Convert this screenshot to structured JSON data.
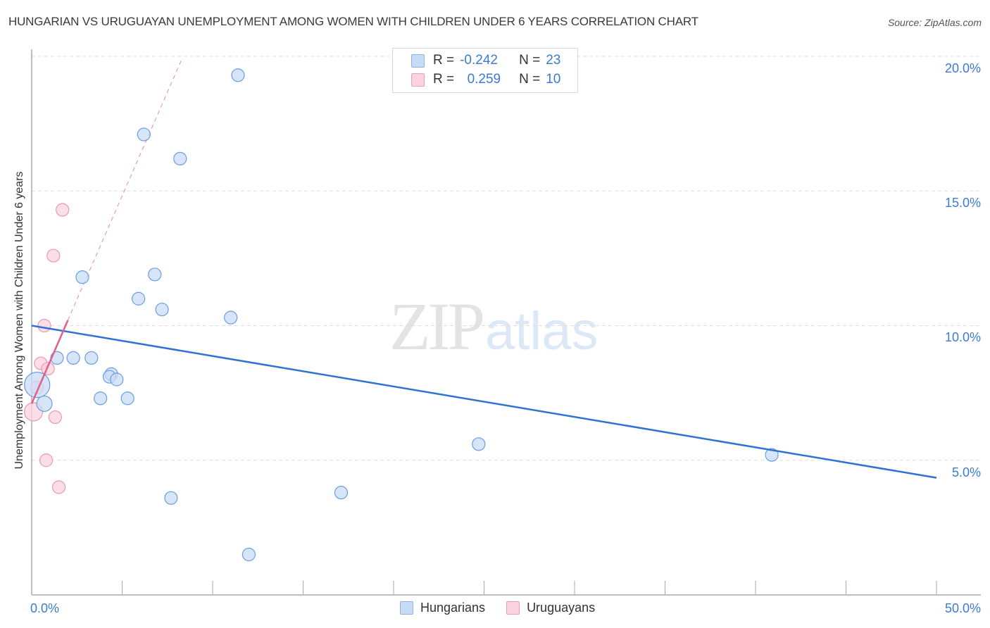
{
  "header": {
    "title": "HUNGARIAN VS URUGUAYAN UNEMPLOYMENT AMONG WOMEN WITH CHILDREN UNDER 6 YEARS CORRELATION CHART",
    "source": "Source: ZipAtlas.com"
  },
  "axes": {
    "y_label": "Unemployment Among Women with Children Under 6 years",
    "y_ticks": [
      "20.0%",
      "15.0%",
      "10.0%",
      "5.0%"
    ],
    "x_min_label": "0.0%",
    "x_max_label": "50.0%"
  },
  "legend": {
    "rows": [
      {
        "r_label": "R =",
        "r_value": "-0.242",
        "n_label": "N =",
        "n_value": "23",
        "color": "#aac8f0"
      },
      {
        "r_label": "R =",
        "r_value": "0.259",
        "n_label": "N =",
        "n_value": "10",
        "color": "#f8bccd"
      }
    ],
    "series": [
      {
        "name": "Hungarians",
        "color": "#aac8f0"
      },
      {
        "name": "Uruguayans",
        "color": "#f8bccd"
      }
    ]
  },
  "watermark": {
    "zip": "ZIP",
    "atlas": "atlas"
  },
  "colors": {
    "blue_fill": "#c9dcf5",
    "blue_stroke": "#6a9de0",
    "blue_line": "#2e72d2",
    "pink_fill": "#fbd3de",
    "pink_stroke": "#ec97b0",
    "pink_line": "#e0608a",
    "tick_label": "#3a7bd5",
    "grid": "#dddddd"
  },
  "chart_data": {
    "type": "scatter",
    "title": "HUNGARIAN VS URUGUAYAN UNEMPLOYMENT AMONG WOMEN WITH CHILDREN UNDER 6 YEARS CORRELATION CHART",
    "xlabel": "",
    "ylabel": "Unemployment Among Women with Children Under 6 years",
    "xlim": [
      0,
      50
    ],
    "ylim": [
      0,
      20.9
    ],
    "x_ticks": [
      "0.0%",
      "50.0%"
    ],
    "y_ticks": [
      "5.0%",
      "10.0%",
      "15.0%",
      "20.0%"
    ],
    "grid": true,
    "legend_position": "bottom-center",
    "series": [
      {
        "name": "Hungarians",
        "r": -0.242,
        "n": 23,
        "points": [
          {
            "x": 11.4,
            "y": 19.3,
            "size": 9
          },
          {
            "x": 6.2,
            "y": 17.1,
            "size": 9
          },
          {
            "x": 8.2,
            "y": 16.2,
            "size": 9
          },
          {
            "x": 2.8,
            "y": 11.8,
            "size": 9
          },
          {
            "x": 6.8,
            "y": 11.9,
            "size": 9
          },
          {
            "x": 5.9,
            "y": 11.0,
            "size": 9
          },
          {
            "x": 7.2,
            "y": 10.6,
            "size": 9
          },
          {
            "x": 11.0,
            "y": 10.3,
            "size": 9
          },
          {
            "x": 2.3,
            "y": 8.8,
            "size": 9
          },
          {
            "x": 3.3,
            "y": 8.8,
            "size": 9
          },
          {
            "x": 1.4,
            "y": 8.8,
            "size": 9
          },
          {
            "x": 4.4,
            "y": 8.2,
            "size": 9
          },
          {
            "x": 4.3,
            "y": 8.1,
            "size": 9
          },
          {
            "x": 4.7,
            "y": 8.0,
            "size": 9
          },
          {
            "x": 3.8,
            "y": 7.3,
            "size": 9
          },
          {
            "x": 5.3,
            "y": 7.3,
            "size": 9
          },
          {
            "x": 0.3,
            "y": 7.8,
            "size": 18
          },
          {
            "x": 0.7,
            "y": 7.1,
            "size": 11
          },
          {
            "x": 24.7,
            "y": 5.6,
            "size": 9
          },
          {
            "x": 40.9,
            "y": 5.2,
            "size": 9
          },
          {
            "x": 17.1,
            "y": 3.8,
            "size": 9
          },
          {
            "x": 7.7,
            "y": 3.6,
            "size": 9
          },
          {
            "x": 12.0,
            "y": 1.5,
            "size": 9
          }
        ],
        "trend": {
          "x0": 0,
          "y0": 10.0,
          "x1": 50,
          "y1": 4.35
        }
      },
      {
        "name": "Uruguayans",
        "r": 0.259,
        "n": 10,
        "points": [
          {
            "x": 1.7,
            "y": 14.3,
            "size": 9
          },
          {
            "x": 1.2,
            "y": 12.6,
            "size": 9
          },
          {
            "x": 0.7,
            "y": 10.0,
            "size": 9
          },
          {
            "x": 0.5,
            "y": 8.6,
            "size": 9
          },
          {
            "x": 0.9,
            "y": 8.4,
            "size": 9
          },
          {
            "x": 0.3,
            "y": 7.7,
            "size": 9
          },
          {
            "x": 0.1,
            "y": 6.8,
            "size": 13
          },
          {
            "x": 1.3,
            "y": 6.6,
            "size": 9
          },
          {
            "x": 0.8,
            "y": 5.0,
            "size": 9
          },
          {
            "x": 1.5,
            "y": 4.0,
            "size": 9
          }
        ],
        "trend": {
          "x0": 0,
          "y0": 7.1,
          "x1": 2.0,
          "y1": 10.2,
          "dashed_extension_to": {
            "x": 8.3,
            "y": 19.9
          }
        }
      }
    ]
  }
}
